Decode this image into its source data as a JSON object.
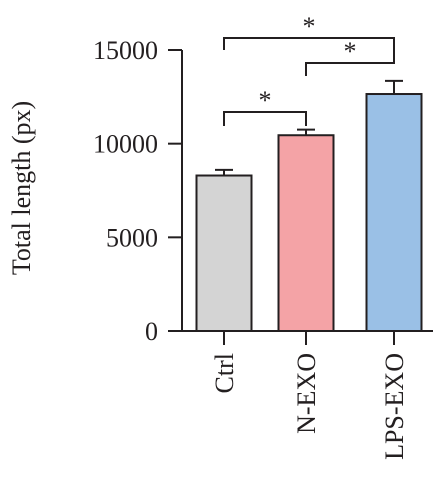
{
  "chart_data": {
    "type": "bar",
    "ylabel": "Total length (px)",
    "xlabel": "",
    "ylim": [
      0,
      15000
    ],
    "yticks": [
      0,
      5000,
      10000,
      15000
    ],
    "categories": [
      "Ctrl",
      "N-EXO",
      "LPS-EXO"
    ],
    "values": [
      8300,
      10450,
      12650
    ],
    "errors": [
      300,
      300,
      700
    ],
    "bar_colors": [
      "#d4d4d4",
      "#f4a3a6",
      "#9ac0e6"
    ],
    "significance": [
      {
        "from": "Ctrl",
        "to": "N-EXO",
        "label": "*"
      },
      {
        "from": "N-EXO",
        "to": "LPS-EXO",
        "label": "*"
      },
      {
        "from": "Ctrl",
        "to": "LPS-EXO",
        "label": "*"
      }
    ]
  }
}
